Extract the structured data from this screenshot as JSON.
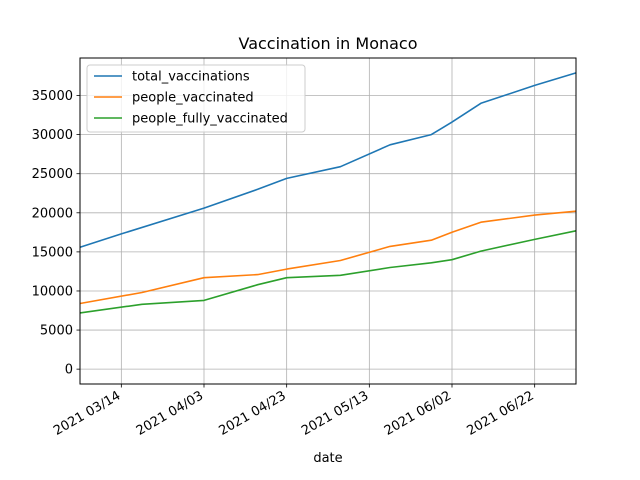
{
  "chart_data": {
    "type": "line",
    "title": "Vaccination in Monaco",
    "xlabel": "date",
    "ylabel": "",
    "x": [
      "2021-03-04",
      "2021-03-24",
      "2021-04-03",
      "2021-04-16",
      "2021-04-23",
      "2021-05-06",
      "2021-05-18",
      "2021-05-28",
      "2021-06-02",
      "2021-06-09",
      "2021-06-22",
      "2021-06-30"
    ],
    "xlim": [
      "2021-03-04",
      "2021-07-02"
    ],
    "ylim": [
      -1900,
      39800
    ],
    "x_ticks": [
      "2021-03-14",
      "2021-04-03",
      "2021-04-23",
      "2021-05-13",
      "2021-06-02",
      "2021-06-22"
    ],
    "x_tick_labels": [
      "2021 03/14",
      "2021 04/03",
      "2021 04/23",
      "2021 05/13",
      "2021 06/02",
      "2021 06/22"
    ],
    "y_ticks": [
      0,
      5000,
      10000,
      15000,
      20000,
      25000,
      30000,
      35000
    ],
    "grid": true,
    "legend_position": "top-left",
    "series": [
      {
        "name": "total_vaccinations",
        "color": "#1f77b4",
        "points": [
          [
            "2021-03-04",
            15600
          ],
          [
            "2021-03-14",
            17300
          ],
          [
            "2021-04-03",
            20600
          ],
          [
            "2021-04-16",
            23000
          ],
          [
            "2021-04-23",
            24400
          ],
          [
            "2021-05-06",
            25900
          ],
          [
            "2021-05-18",
            28700
          ],
          [
            "2021-05-28",
            30000
          ],
          [
            "2021-06-02",
            31600
          ],
          [
            "2021-06-09",
            34000
          ],
          [
            "2021-06-22",
            36300
          ],
          [
            "2021-07-02",
            37900
          ]
        ]
      },
      {
        "name": "people_vaccinated",
        "color": "#ff7f0e",
        "points": [
          [
            "2021-03-04",
            8400
          ],
          [
            "2021-03-19",
            9800
          ],
          [
            "2021-04-03",
            11700
          ],
          [
            "2021-04-16",
            12100
          ],
          [
            "2021-04-23",
            12800
          ],
          [
            "2021-05-06",
            13900
          ],
          [
            "2021-05-18",
            15700
          ],
          [
            "2021-05-28",
            16500
          ],
          [
            "2021-06-02",
            17500
          ],
          [
            "2021-06-09",
            18800
          ],
          [
            "2021-06-22",
            19700
          ],
          [
            "2021-07-02",
            20200
          ]
        ]
      },
      {
        "name": "people_fully_vaccinated",
        "color": "#2ca02c",
        "points": [
          [
            "2021-03-04",
            7200
          ],
          [
            "2021-03-19",
            8300
          ],
          [
            "2021-04-03",
            8800
          ],
          [
            "2021-04-16",
            10800
          ],
          [
            "2021-04-23",
            11700
          ],
          [
            "2021-05-06",
            12000
          ],
          [
            "2021-05-18",
            13000
          ],
          [
            "2021-05-28",
            13600
          ],
          [
            "2021-06-02",
            14000
          ],
          [
            "2021-06-09",
            15100
          ],
          [
            "2021-06-22",
            16600
          ],
          [
            "2021-07-02",
            17700
          ]
        ]
      }
    ]
  }
}
